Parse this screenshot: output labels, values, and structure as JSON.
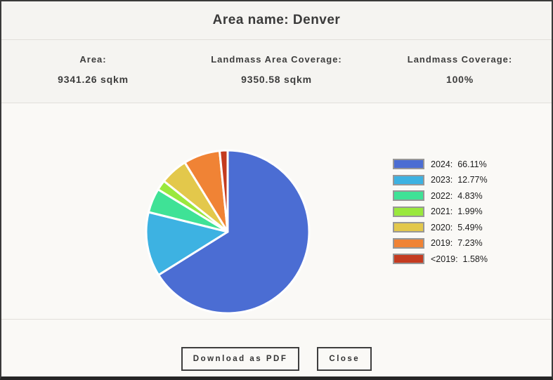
{
  "window": {
    "title": "Area name: Denver"
  },
  "stats": {
    "items": [
      {
        "label": "Area:",
        "value": "9341.26 sqkm"
      },
      {
        "label": "Landmass Area Coverage:",
        "value": "9350.58 sqkm"
      },
      {
        "label": "Landmass Coverage:",
        "value": "100%"
      }
    ]
  },
  "chart_data": {
    "type": "pie",
    "categories": [
      "2024",
      "2023",
      "2022",
      "2021",
      "2020",
      "2019",
      "<2019"
    ],
    "values": [
      66.11,
      12.77,
      4.83,
      1.99,
      5.49,
      7.23,
      1.58
    ],
    "colors": [
      "#4b6dd3",
      "#3db2e2",
      "#3fe296",
      "#9ae83d",
      "#e3c84b",
      "#f08335",
      "#c43b20"
    ],
    "legend_position": "right",
    "start_angle": "top",
    "direction": "clockwise",
    "slice_border_color": "#ffffff",
    "legend_swatch_border_color": "#979797",
    "label_format": "{category}:  {value}%"
  },
  "footer": {
    "download_label": "Download as PDF",
    "close_label": "Close"
  }
}
